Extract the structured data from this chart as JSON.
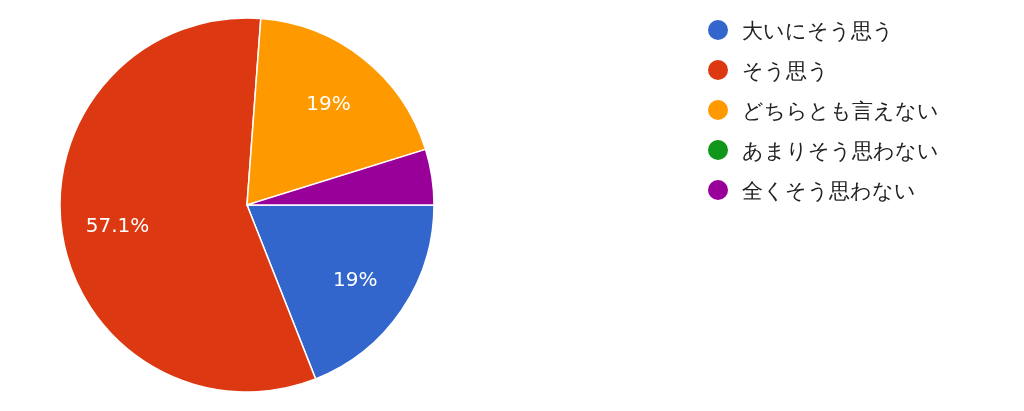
{
  "chart_data": {
    "type": "pie",
    "categories": [
      "大いにそう思う",
      "そう思う",
      "どちらとも言えない",
      "あまりそう思わない",
      "全くそう思わない"
    ],
    "values": [
      19,
      57.1,
      19,
      0,
      4.8
    ],
    "value_labels": [
      "19%",
      "57.1%",
      "19%",
      null,
      null
    ],
    "colors": [
      "#3366cc",
      "#dc3912",
      "#ff9900",
      "#109618",
      "#990099"
    ],
    "legend": "right"
  }
}
